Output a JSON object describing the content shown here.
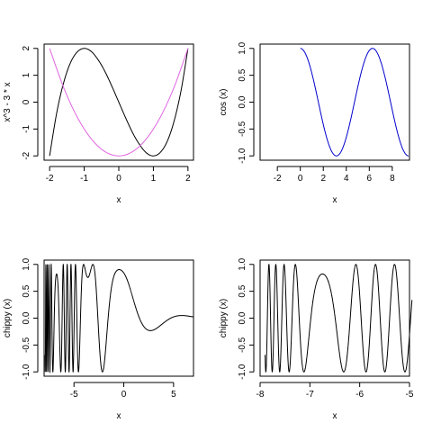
{
  "chart_data": [
    {
      "type": "line",
      "xlabel": "x",
      "ylabel": "x^3 - 3 * x",
      "xlim": [
        -2,
        2
      ],
      "ylim": [
        -2,
        2
      ],
      "xticks": [
        -2,
        -1,
        0,
        1,
        2
      ],
      "yticks": [
        -2,
        -1,
        0,
        1,
        2
      ],
      "series": [
        {
          "color": "#000000",
          "x": [
            -2,
            -1.8,
            -1.6,
            -1.4,
            -1.2,
            -1,
            -0.8,
            -0.6,
            -0.4,
            -0.2,
            0,
            0.2,
            0.4,
            0.6,
            0.8,
            1,
            1.2,
            1.4,
            1.6,
            1.8,
            2
          ],
          "y": [
            -2,
            -0.43,
            0.7,
            1.46,
            1.87,
            2,
            1.89,
            1.58,
            1.14,
            0.59,
            0,
            -0.59,
            -1.14,
            -1.58,
            -1.89,
            -2,
            -1.87,
            -1.46,
            -0.7,
            0.43,
            2
          ]
        },
        {
          "color": "#e066e0",
          "x": [
            -2,
            -1.6,
            -1.2,
            -0.8,
            -0.4,
            0,
            0.4,
            0.8,
            1.2,
            1.6,
            2
          ],
          "y": [
            2,
            0.56,
            -0.56,
            -1.36,
            -1.84,
            -2,
            -1.84,
            -1.36,
            -0.56,
            0.56,
            2
          ]
        }
      ]
    },
    {
      "type": "line",
      "xlabel": "x",
      "ylabel": "cos (x)",
      "xlim": [
        -3.5,
        9.5
      ],
      "ylim": [
        -1,
        1
      ],
      "xticks": [
        -2,
        0,
        2,
        4,
        6,
        8
      ],
      "yticks": [
        -1.0,
        -0.5,
        0.0,
        0.5,
        1.0
      ],
      "series": [
        {
          "color": "#0000cc",
          "function": "cos",
          "from": 0,
          "to": 9.42
        }
      ]
    },
    {
      "type": "line",
      "xlabel": "x",
      "ylabel": "chippy (x)",
      "xlim": [
        -8,
        7
      ],
      "ylim": [
        -1,
        1
      ],
      "xticks": [
        -5,
        0,
        5
      ],
      "yticks": [
        -1.0,
        -0.5,
        0.0,
        0.5,
        1.0
      ],
      "series": [
        {
          "color": "#000000",
          "function": "chippy",
          "from": -7.9,
          "to": 7
        }
      ]
    },
    {
      "type": "line",
      "xlabel": "x",
      "ylabel": "chippy (x)",
      "xlim": [
        -8,
        -5
      ],
      "ylim": [
        -1,
        1
      ],
      "xticks": [
        -8.0,
        -7.0,
        -6.0,
        -5.0
      ],
      "yticks": [
        -1.0,
        -0.5,
        0.0,
        0.5,
        1.0
      ],
      "series": [
        {
          "color": "#000000",
          "function": "chippy",
          "from": -7.9,
          "to": -4.95
        }
      ]
    }
  ]
}
